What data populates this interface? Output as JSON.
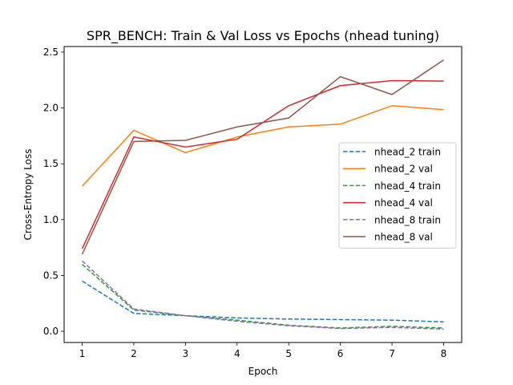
{
  "chart_data": {
    "type": "line",
    "title": "SPR_BENCH: Train & Val Loss vs Epochs (nhead tuning)",
    "xlabel": "Epoch",
    "ylabel": "Cross-Entropy Loss",
    "x": [
      1,
      2,
      3,
      4,
      5,
      6,
      7,
      8
    ],
    "xlim": [
      0.65,
      8.35
    ],
    "ylim": [
      -0.1,
      2.55
    ],
    "xticks": [
      "1",
      "2",
      "3",
      "4",
      "5",
      "6",
      "7",
      "8"
    ],
    "yticks": [
      "0.0",
      "0.5",
      "1.0",
      "1.5",
      "2.0",
      "2.5"
    ],
    "ytick_values": [
      0.0,
      0.5,
      1.0,
      1.5,
      2.0,
      2.5
    ],
    "grid": false,
    "legend_position": "center-right",
    "series": [
      {
        "name": "nhead_2 train",
        "color": "#1f77b4",
        "style": "dashed",
        "values": [
          0.45,
          0.16,
          0.14,
          0.12,
          0.11,
          0.105,
          0.1,
          0.085
        ]
      },
      {
        "name": "nhead_2 val",
        "color": "#ff7f0e",
        "style": "solid",
        "values": [
          1.3,
          1.8,
          1.6,
          1.74,
          1.83,
          1.855,
          2.02,
          1.985
        ]
      },
      {
        "name": "nhead_4 train",
        "color": "#2ca02c",
        "style": "dashed",
        "values": [
          0.6,
          0.19,
          0.14,
          0.1,
          0.055,
          0.03,
          0.045,
          0.03
        ]
      },
      {
        "name": "nhead_4 val",
        "color": "#d62728",
        "style": "solid",
        "values": [
          0.74,
          1.74,
          1.65,
          1.72,
          2.02,
          2.2,
          2.245,
          2.24
        ]
      },
      {
        "name": "nhead_8 train",
        "color": "#9467bd",
        "style": "dashed",
        "values": [
          0.63,
          0.2,
          0.14,
          0.09,
          0.05,
          0.025,
          0.035,
          0.02
        ]
      },
      {
        "name": "nhead_8 val",
        "color": "#8c564b",
        "style": "solid",
        "values": [
          0.69,
          1.7,
          1.71,
          1.83,
          1.91,
          2.28,
          2.12,
          2.43
        ]
      }
    ]
  }
}
